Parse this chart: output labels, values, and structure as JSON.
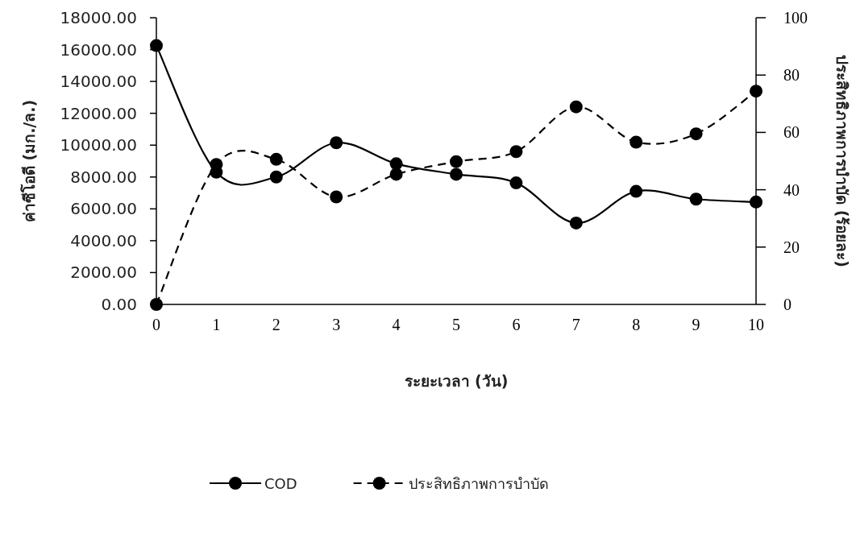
{
  "chart_data": {
    "type": "line",
    "xlabel": "ระยะเวลา (วัน)",
    "ylabel": "ค่าซีโอดี (มก./ล.)",
    "y2label": "ประสิทธิภาพการบำบัด (ร้อยละ)",
    "x": [
      0,
      1,
      2,
      3,
      4,
      5,
      6,
      7,
      8,
      9,
      10
    ],
    "xlim": [
      0,
      10
    ],
    "xticks": [
      0,
      1,
      2,
      3,
      4,
      5,
      6,
      7,
      8,
      9,
      10
    ],
    "ylim": [
      0,
      18000
    ],
    "yticks": [
      {
        "value": 0,
        "label": "0.00"
      },
      {
        "value": 2000,
        "label": "2000.00"
      },
      {
        "value": 4000,
        "label": "4000.00"
      },
      {
        "value": 6000,
        "label": "6000.00"
      },
      {
        "value": 8000,
        "label": "8000.00"
      },
      {
        "value": 10000,
        "label": "10000.00"
      },
      {
        "value": 12000,
        "label": "12000.00"
      },
      {
        "value": 14000,
        "label": "14000.00"
      },
      {
        "value": 16000,
        "label": "16000.00"
      },
      {
        "value": 18000,
        "label": "18000.00"
      }
    ],
    "y2lim": [
      0,
      100
    ],
    "y2ticks": [
      0,
      20,
      40,
      60,
      80,
      100
    ],
    "marker": "circle",
    "legend": "bottom",
    "series": [
      {
        "name": "COD",
        "color": "#000000",
        "line_style": "solid",
        "values": [
          16250,
          8300,
          8000,
          10150,
          8830,
          8170,
          7630,
          5110,
          7100,
          6610,
          6430
        ]
      },
      {
        "name": "ประสิทธิภาพการบำบัด",
        "color": "#000000",
        "line_style": "dashed",
        "axis": "y2",
        "values": [
          0,
          48.8,
          50.6,
          37.5,
          45.4,
          49.8,
          53.3,
          68.9,
          56.6,
          59.5,
          74.4
        ]
      }
    ]
  }
}
